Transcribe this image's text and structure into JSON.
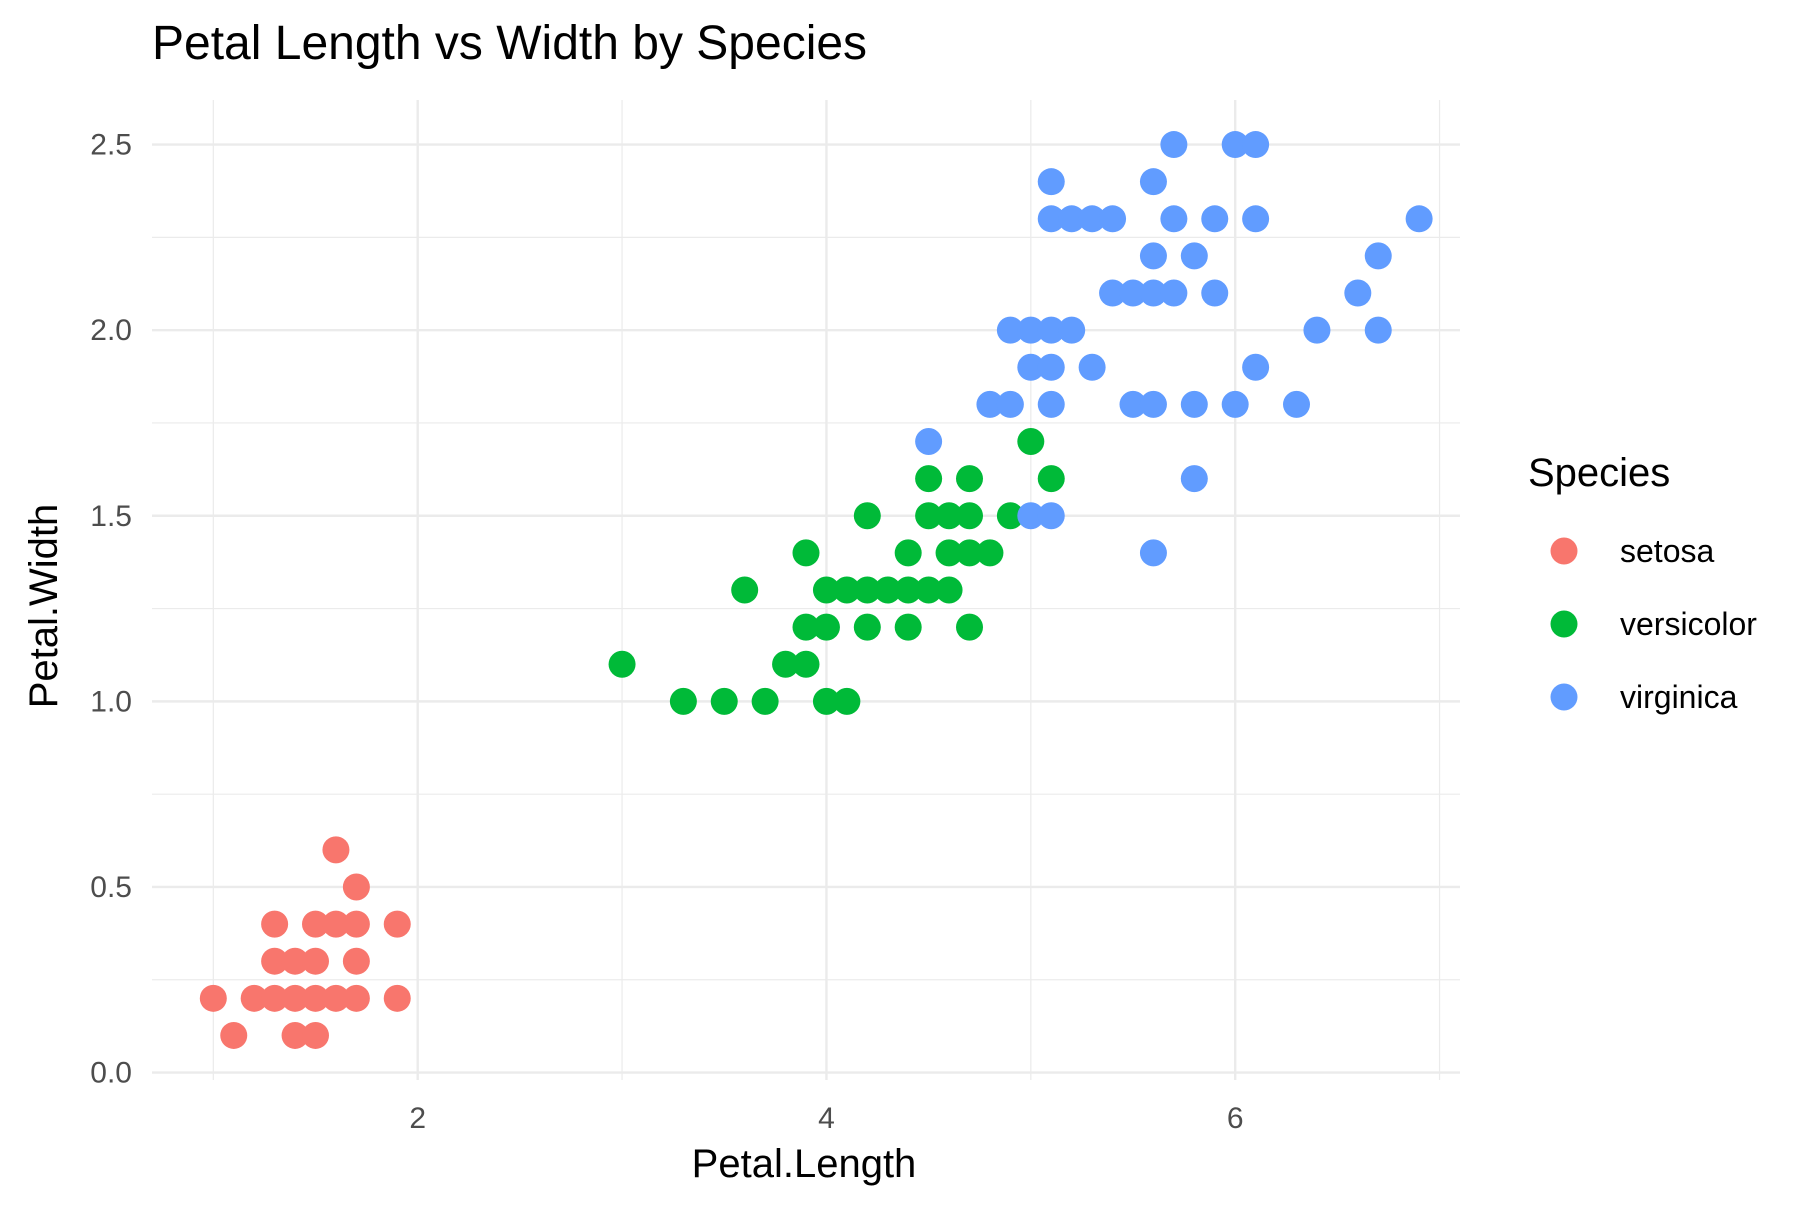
{
  "chart_data": {
    "type": "scatter",
    "title": "Petal Length vs Width by Species",
    "xlabel": "Petal.Length",
    "ylabel": "Petal.Width",
    "xlim": [
      0.7,
      7.1
    ],
    "ylim": [
      -0.02,
      2.62
    ],
    "x_ticks": [
      2,
      4,
      6
    ],
    "x_tick_labels": [
      "2",
      "4",
      "6"
    ],
    "y_ticks": [
      0.0,
      0.5,
      1.0,
      1.5,
      2.0,
      2.5
    ],
    "y_tick_labels": [
      "0.0",
      "0.5",
      "1.0",
      "1.5",
      "2.0",
      "2.5"
    ],
    "grid": true,
    "legend": {
      "title": "Species",
      "position": "right"
    },
    "colors": {
      "setosa": "#F8766D",
      "versicolor": "#00BA38",
      "virginica": "#619CFF",
      "grid": "#EBEBEB",
      "text": "#000000",
      "tick_text": "#4D4D4D"
    },
    "series": [
      {
        "name": "setosa",
        "color": "#F8766D",
        "points": [
          [
            1.0,
            0.2
          ],
          [
            1.1,
            0.1
          ],
          [
            1.2,
            0.2
          ],
          [
            1.3,
            0.2
          ],
          [
            1.3,
            0.3
          ],
          [
            1.3,
            0.4
          ],
          [
            1.4,
            0.1
          ],
          [
            1.4,
            0.2
          ],
          [
            1.4,
            0.3
          ],
          [
            1.5,
            0.1
          ],
          [
            1.5,
            0.2
          ],
          [
            1.5,
            0.3
          ],
          [
            1.5,
            0.4
          ],
          [
            1.6,
            0.2
          ],
          [
            1.6,
            0.4
          ],
          [
            1.6,
            0.6
          ],
          [
            1.7,
            0.2
          ],
          [
            1.7,
            0.3
          ],
          [
            1.7,
            0.4
          ],
          [
            1.7,
            0.5
          ],
          [
            1.9,
            0.2
          ],
          [
            1.9,
            0.4
          ]
        ]
      },
      {
        "name": "versicolor",
        "color": "#00BA38",
        "points": [
          [
            3.0,
            1.1
          ],
          [
            3.3,
            1.0
          ],
          [
            3.5,
            1.0
          ],
          [
            3.6,
            1.3
          ],
          [
            3.7,
            1.0
          ],
          [
            3.8,
            1.1
          ],
          [
            3.9,
            1.1
          ],
          [
            3.9,
            1.2
          ],
          [
            3.9,
            1.4
          ],
          [
            4.0,
            1.0
          ],
          [
            4.0,
            1.2
          ],
          [
            4.0,
            1.3
          ],
          [
            4.1,
            1.0
          ],
          [
            4.1,
            1.3
          ],
          [
            4.2,
            1.2
          ],
          [
            4.2,
            1.3
          ],
          [
            4.2,
            1.5
          ],
          [
            4.3,
            1.3
          ],
          [
            4.4,
            1.2
          ],
          [
            4.4,
            1.3
          ],
          [
            4.4,
            1.4
          ],
          [
            4.5,
            1.3
          ],
          [
            4.5,
            1.5
          ],
          [
            4.5,
            1.6
          ],
          [
            4.6,
            1.3
          ],
          [
            4.6,
            1.4
          ],
          [
            4.6,
            1.5
          ],
          [
            4.7,
            1.2
          ],
          [
            4.7,
            1.4
          ],
          [
            4.7,
            1.5
          ],
          [
            4.7,
            1.6
          ],
          [
            4.8,
            1.4
          ],
          [
            4.9,
            1.5
          ],
          [
            5.0,
            1.7
          ],
          [
            5.1,
            1.6
          ]
        ]
      },
      {
        "name": "virginica",
        "color": "#619CFF",
        "points": [
          [
            4.5,
            1.7
          ],
          [
            4.8,
            1.8
          ],
          [
            4.9,
            1.8
          ],
          [
            4.9,
            2.0
          ],
          [
            5.0,
            1.5
          ],
          [
            5.0,
            1.9
          ],
          [
            5.0,
            2.0
          ],
          [
            5.1,
            1.5
          ],
          [
            5.1,
            1.8
          ],
          [
            5.1,
            1.9
          ],
          [
            5.1,
            2.0
          ],
          [
            5.1,
            2.3
          ],
          [
            5.1,
            2.4
          ],
          [
            5.2,
            2.0
          ],
          [
            5.2,
            2.3
          ],
          [
            5.3,
            1.9
          ],
          [
            5.3,
            2.3
          ],
          [
            5.4,
            2.1
          ],
          [
            5.4,
            2.3
          ],
          [
            5.5,
            1.8
          ],
          [
            5.5,
            2.1
          ],
          [
            5.6,
            1.4
          ],
          [
            5.6,
            1.8
          ],
          [
            5.6,
            2.1
          ],
          [
            5.6,
            2.2
          ],
          [
            5.6,
            2.4
          ],
          [
            5.7,
            2.1
          ],
          [
            5.7,
            2.3
          ],
          [
            5.7,
            2.5
          ],
          [
            5.8,
            1.6
          ],
          [
            5.8,
            1.8
          ],
          [
            5.8,
            2.2
          ],
          [
            5.9,
            2.1
          ],
          [
            5.9,
            2.3
          ],
          [
            6.0,
            1.8
          ],
          [
            6.0,
            2.5
          ],
          [
            6.1,
            1.9
          ],
          [
            6.1,
            2.3
          ],
          [
            6.1,
            2.5
          ],
          [
            6.3,
            1.8
          ],
          [
            6.4,
            2.0
          ],
          [
            6.6,
            2.1
          ],
          [
            6.7,
            2.0
          ],
          [
            6.7,
            2.2
          ],
          [
            6.9,
            2.3
          ]
        ]
      }
    ]
  }
}
